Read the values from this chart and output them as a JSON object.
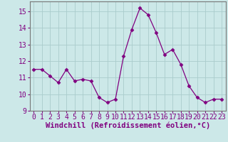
{
  "x": [
    0,
    1,
    2,
    3,
    4,
    5,
    6,
    7,
    8,
    9,
    10,
    11,
    12,
    13,
    14,
    15,
    16,
    17,
    18,
    19,
    20,
    21,
    22,
    23
  ],
  "y": [
    11.5,
    11.5,
    11.1,
    10.7,
    11.5,
    10.8,
    10.9,
    10.8,
    9.8,
    9.5,
    9.7,
    12.3,
    13.9,
    15.2,
    14.8,
    13.7,
    12.4,
    12.7,
    11.8,
    10.5,
    9.8,
    9.5,
    9.7,
    9.7
  ],
  "line_color": "#800080",
  "marker": "D",
  "marker_size": 2.5,
  "bg_color": "#cce8e8",
  "grid_color": "#aacccc",
  "xlabel": "Windchill (Refroidissement éolien,°C)",
  "xlabel_fontsize": 7.5,
  "tick_fontsize": 7,
  "ylim": [
    9,
    15.6
  ],
  "xlim": [
    -0.5,
    23.5
  ],
  "yticks": [
    9,
    10,
    11,
    12,
    13,
    14,
    15
  ],
  "xticks": [
    0,
    1,
    2,
    3,
    4,
    5,
    6,
    7,
    8,
    9,
    10,
    11,
    12,
    13,
    14,
    15,
    16,
    17,
    18,
    19,
    20,
    21,
    22,
    23
  ],
  "spine_color": "#777777"
}
